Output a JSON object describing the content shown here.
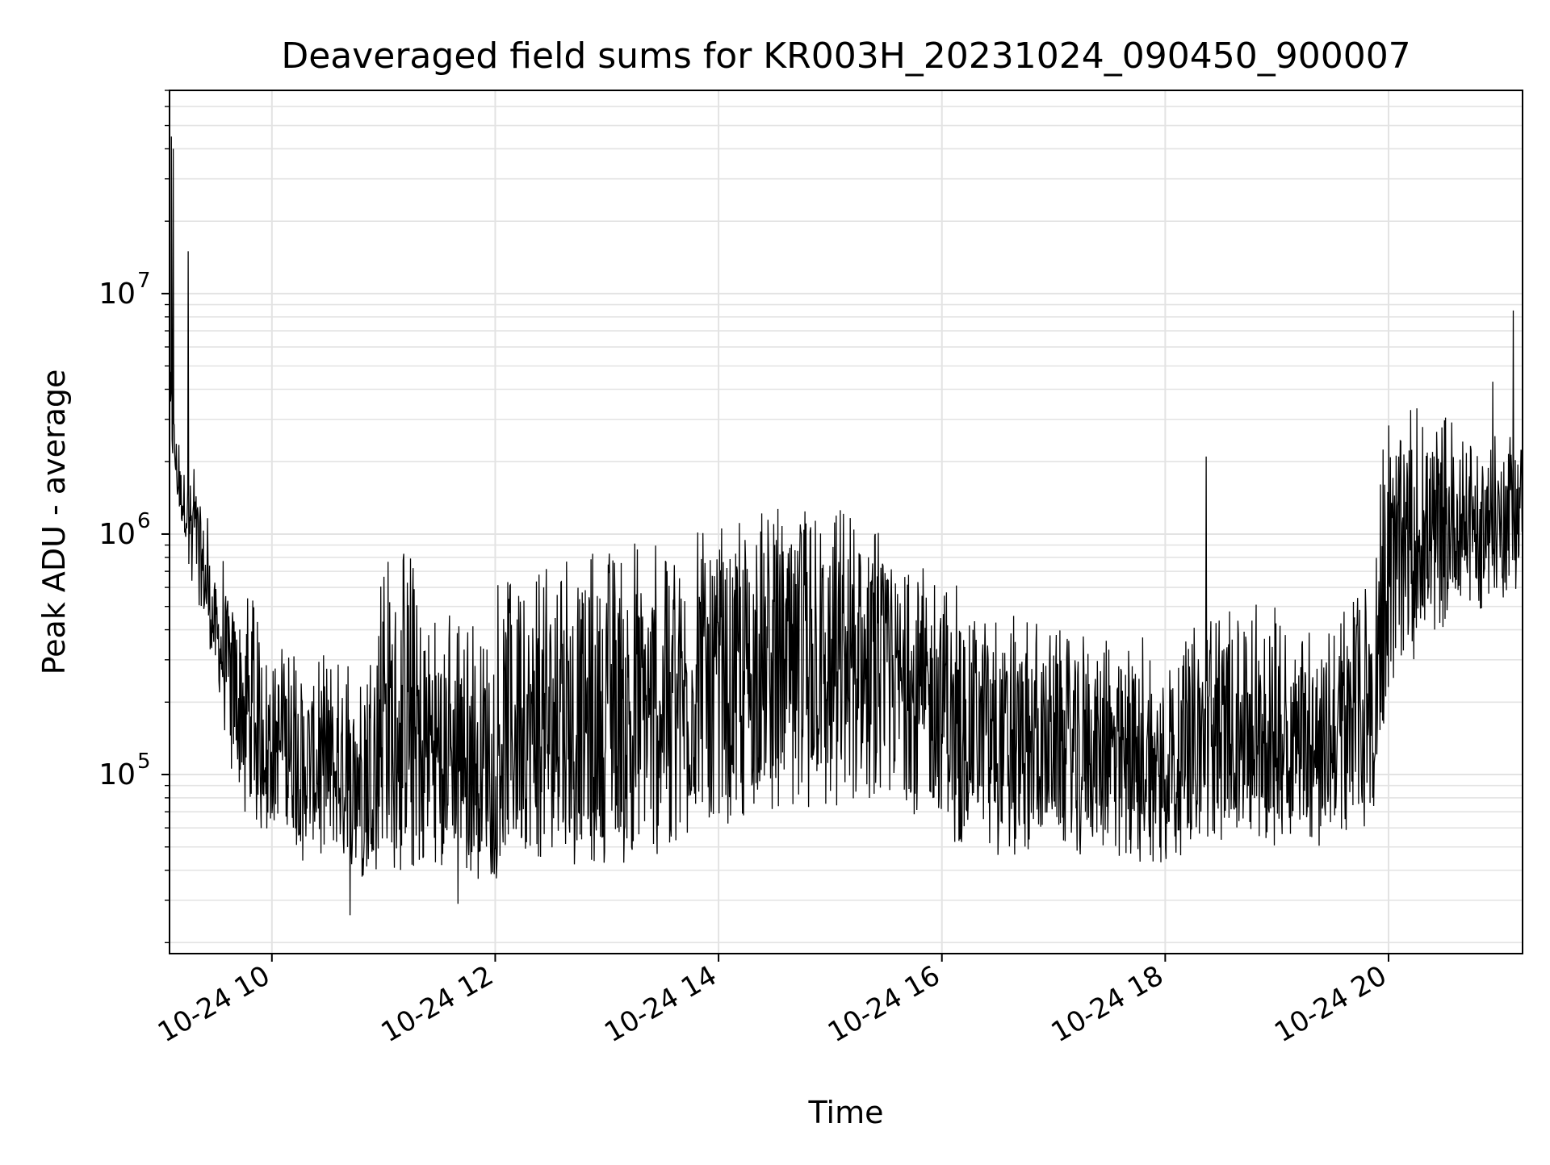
{
  "chart_data": {
    "type": "line",
    "title": "Deaveraged field sums for KR003H_20231024_090450_900007",
    "xlabel": "Time",
    "ylabel": "Peak ADU - average",
    "y_scale": "log",
    "grid": true,
    "xlim": [
      "2023-10-24 09:05",
      "2023-10-24 21:12"
    ],
    "ylim": [
      18000,
      70000000
    ],
    "x_ticks": [
      {
        "value": "2023-10-24 10:00",
        "label": "10-24 10"
      },
      {
        "value": "2023-10-24 12:00",
        "label": "10-24 12"
      },
      {
        "value": "2023-10-24 14:00",
        "label": "10-24 14"
      },
      {
        "value": "2023-10-24 16:00",
        "label": "10-24 16"
      },
      {
        "value": "2023-10-24 18:00",
        "label": "10-24 18"
      },
      {
        "value": "2023-10-24 20:00",
        "label": "10-24 20"
      }
    ],
    "y_ticks": [
      {
        "value": 100000,
        "base": "10",
        "exp": "5"
      },
      {
        "value": 1000000,
        "base": "10",
        "exp": "6"
      },
      {
        "value": 10000000,
        "base": "10",
        "exp": "7"
      }
    ],
    "line_color": "#000000",
    "envelope": {
      "x": [
        "2023-10-24 09:05",
        "2023-10-24 09:10",
        "2023-10-24 09:15",
        "2023-10-24 09:20",
        "2023-10-24 09:30",
        "2023-10-24 09:40",
        "2023-10-24 09:50",
        "2023-10-24 10:00",
        "2023-10-24 10:15",
        "2023-10-24 10:30",
        "2023-10-24 10:45",
        "2023-10-24 11:00",
        "2023-10-24 11:15",
        "2023-10-24 11:30",
        "2023-10-24 11:45",
        "2023-10-24 12:00",
        "2023-10-24 12:30",
        "2023-10-24 13:00",
        "2023-10-24 13:30",
        "2023-10-24 14:00",
        "2023-10-24 14:30",
        "2023-10-24 15:00",
        "2023-10-24 15:30",
        "2023-10-24 16:00",
        "2023-10-24 16:30",
        "2023-10-24 17:00",
        "2023-10-24 17:30",
        "2023-10-24 18:00",
        "2023-10-24 18:30",
        "2023-10-24 19:00",
        "2023-10-24 19:30",
        "2023-10-24 19:50",
        "2023-10-24 20:00",
        "2023-10-24 20:30",
        "2023-10-24 21:00",
        "2023-10-24 21:12"
      ],
      "low": [
        2500000,
        1200000,
        900000,
        600000,
        250000,
        110000,
        80000,
        70000,
        55000,
        50000,
        48000,
        50000,
        52000,
        55000,
        47000,
        48000,
        50000,
        55000,
        60000,
        80000,
        90000,
        95000,
        100000,
        70000,
        60000,
        58000,
        55000,
        55000,
        70000,
        65000,
        65000,
        70000,
        300000,
        550000,
        700000,
        800000
      ],
      "high": [
        5000000,
        2000000,
        1700000,
        1500000,
        600000,
        500000,
        400000,
        300000,
        250000,
        220000,
        220000,
        580000,
        600000,
        350000,
        300000,
        450000,
        550000,
        620000,
        700000,
        800000,
        900000,
        950000,
        700000,
        500000,
        350000,
        300000,
        300000,
        250000,
        400000,
        350000,
        300000,
        600000,
        2500000,
        2300000,
        2000000,
        2500000
      ]
    },
    "spikes": [
      {
        "x": "2023-10-24 09:06",
        "y": 45000000
      },
      {
        "x": "2023-10-24 09:07",
        "y": 40000000
      },
      {
        "x": "2023-10-24 09:15",
        "y": 15000000
      },
      {
        "x": "2023-10-24 10:42",
        "y": 26000
      },
      {
        "x": "2023-10-24 11:40",
        "y": 29000
      },
      {
        "x": "2023-10-24 18:22",
        "y": 2100000
      },
      {
        "x": "2023-10-24 21:07",
        "y": 8500000
      },
      {
        "x": "2023-10-24 20:56",
        "y": 4300000
      }
    ]
  }
}
